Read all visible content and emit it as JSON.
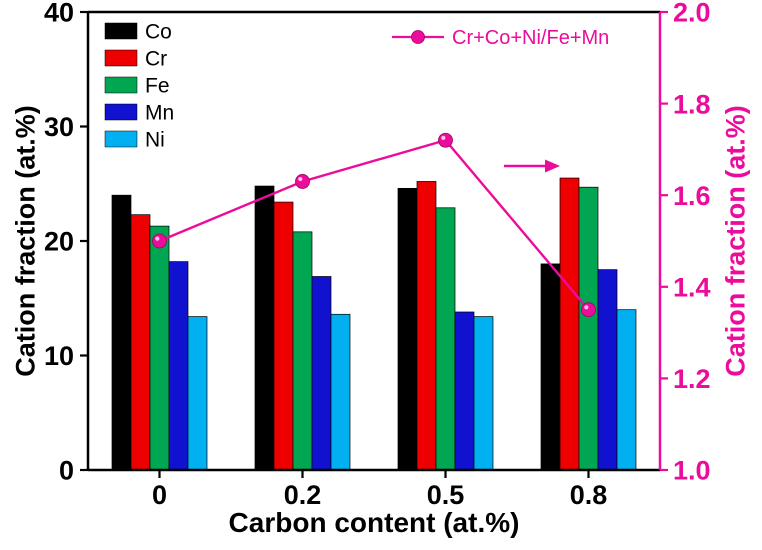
{
  "chart_data": {
    "type": "bar",
    "categories": [
      "0",
      "0.2",
      "0.5",
      "0.8"
    ],
    "bar_series": [
      {
        "name": "Co",
        "color": "#000000",
        "values": [
          24.0,
          24.8,
          24.6,
          18.0
        ]
      },
      {
        "name": "Cr",
        "color": "#ee0000",
        "values": [
          22.3,
          23.4,
          25.2,
          25.5
        ]
      },
      {
        "name": "Fe",
        "color": "#00a651",
        "values": [
          21.3,
          20.8,
          22.9,
          24.7
        ]
      },
      {
        "name": "Mn",
        "color": "#1111d0",
        "values": [
          18.2,
          16.9,
          13.8,
          17.5
        ]
      },
      {
        "name": "Ni",
        "color": "#00b0f0",
        "values": [
          13.4,
          13.6,
          13.4,
          14.0
        ]
      }
    ],
    "line_series": {
      "name": "Cr+Co+Ni/Fe+Mn",
      "color": "#ec0c9c",
      "axis": "right",
      "values": [
        1.5,
        1.63,
        1.72,
        1.35
      ]
    },
    "left_axis": {
      "label": "Cation fraction (at.%)",
      "min": 0,
      "max": 40,
      "ticks": [
        0,
        10,
        20,
        30,
        40
      ],
      "color": "#000000"
    },
    "right_axis": {
      "label": "Cation fraction (at.%)",
      "min": 1.0,
      "max": 2.0,
      "ticks": [
        "1.0",
        "1.2",
        "1.4",
        "1.6",
        "1.8",
        "2.0"
      ],
      "color": "#ec0c9c"
    },
    "x_axis": {
      "label": "Carbon content (at.%)"
    },
    "legend_position": "top-left",
    "line_legend_position": "top-right",
    "grid": false,
    "annotations": [
      {
        "type": "arrow",
        "direction": "right",
        "color": "#ec0c9c",
        "meaning": "line series read on right axis"
      }
    ]
  }
}
